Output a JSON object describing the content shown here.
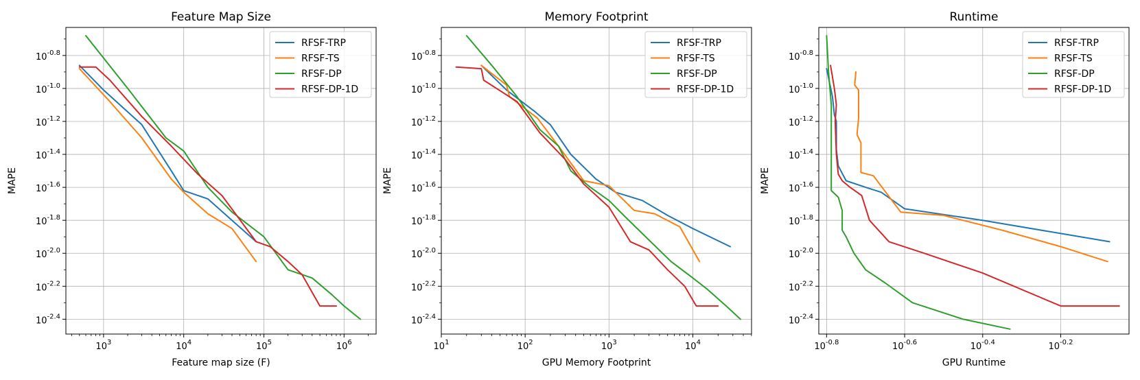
{
  "chart_data": [
    {
      "type": "line",
      "title": "Feature Map Size",
      "xlabel": "Feature map size (F)",
      "ylabel": "MAPE",
      "xscale": "log",
      "yscale": "log",
      "xlim_log10": [
        2.53,
        6.4
      ],
      "ylim_log10": [
        -2.49,
        -0.63
      ],
      "xticks_log10": [
        3,
        4,
        5,
        6
      ],
      "xtick_labels": [
        "10^3",
        "10^4",
        "10^5",
        "10^6"
      ],
      "yticks_log10": [
        -2.4,
        -2.2,
        -2.0,
        -1.8,
        -1.6,
        -1.4,
        -1.2,
        -1.0,
        -0.8
      ],
      "ytick_labels": [
        "10^-2.4",
        "10^-2.2",
        "10^-2.0",
        "10^-1.8",
        "10^-1.6",
        "10^-1.4",
        "10^-1.2",
        "10^-1.0",
        "10^-0.8"
      ],
      "grid": true,
      "legend": "top-right",
      "series": [
        {
          "name": "RFSF-TRP",
          "color": "#1f77b4",
          "x": [
            500,
            1000,
            3000,
            7000,
            10000,
            20000,
            40000,
            80000
          ],
          "y_log10": [
            -0.86,
            -1.01,
            -1.22,
            -1.5,
            -1.62,
            -1.67,
            -1.8,
            -1.93
          ]
        },
        {
          "name": "RFSF-TS",
          "color": "#ff7f0e",
          "x": [
            500,
            1200,
            3000,
            7000,
            10000,
            20000,
            40000,
            80000
          ],
          "y_log10": [
            -0.88,
            -1.08,
            -1.3,
            -1.55,
            -1.63,
            -1.76,
            -1.85,
            -2.05
          ]
        },
        {
          "name": "RFSF-DP",
          "color": "#2ca02c",
          "x": [
            600,
            2000,
            6000,
            10000,
            20000,
            40000,
            100000,
            200000,
            400000,
            700000,
            1000000,
            1600000
          ],
          "y_log10": [
            -0.68,
            -1.0,
            -1.3,
            -1.38,
            -1.6,
            -1.75,
            -1.9,
            -2.1,
            -2.15,
            -2.25,
            -2.32,
            -2.4
          ]
        },
        {
          "name": "RFSF-DP-1D",
          "color": "#d62728",
          "x": [
            500,
            800,
            1200,
            3000,
            7000,
            15000,
            30000,
            80000,
            120000,
            200000,
            300000,
            500000,
            800000
          ],
          "y_log10": [
            -0.87,
            -0.87,
            -0.95,
            -1.17,
            -1.35,
            -1.52,
            -1.65,
            -1.93,
            -1.96,
            -2.05,
            -2.13,
            -2.32,
            -2.32
          ]
        }
      ]
    },
    {
      "type": "line",
      "title": "Memory Footprint",
      "xlabel": "GPU Memory Footprint",
      "ylabel": "MAPE",
      "xscale": "log",
      "yscale": "log",
      "xlim_log10": [
        1.0,
        4.7
      ],
      "ylim_log10": [
        -2.49,
        -0.63
      ],
      "xticks_log10": [
        1,
        2,
        3,
        4
      ],
      "xtick_labels": [
        "10^1",
        "10^2",
        "10^3",
        "10^4"
      ],
      "yticks_log10": [
        -2.4,
        -2.2,
        -2.0,
        -1.8,
        -1.6,
        -1.4,
        -1.2,
        -1.0,
        -0.8
      ],
      "ytick_labels": [
        "10^-2.4",
        "10^-2.2",
        "10^-2.0",
        "10^-1.8",
        "10^-1.6",
        "10^-1.4",
        "10^-1.2",
        "10^-1.0",
        "10^-0.8"
      ],
      "grid": true,
      "legend": "top-right",
      "series": [
        {
          "name": "RFSF-TRP",
          "color": "#1f77b4",
          "x": [
            30,
            60,
            130,
            200,
            350,
            700,
            1200,
            2500,
            5000,
            10000,
            28000
          ],
          "y_log10": [
            -0.86,
            -1.01,
            -1.14,
            -1.22,
            -1.4,
            -1.55,
            -1.63,
            -1.68,
            -1.77,
            -1.85,
            -1.96
          ]
        },
        {
          "name": "RFSF-TS",
          "color": "#ff7f0e",
          "x": [
            30,
            60,
            65,
            140,
            250,
            500,
            1000,
            2000,
            3500,
            7000,
            12000
          ],
          "y_log10": [
            -0.86,
            -0.98,
            -1.05,
            -1.18,
            -1.35,
            -1.56,
            -1.59,
            -1.74,
            -1.76,
            -1.84,
            -2.05
          ]
        },
        {
          "name": "RFSF-DP",
          "color": "#2ca02c",
          "x": [
            20,
            40,
            80,
            150,
            250,
            350,
            600,
            1000,
            1500,
            3000,
            5500,
            10000,
            15000,
            25000,
            37000
          ],
          "y_log10": [
            -0.68,
            -0.86,
            -1.05,
            -1.25,
            -1.35,
            -1.5,
            -1.6,
            -1.68,
            -1.77,
            -1.92,
            -2.05,
            -2.15,
            -2.22,
            -2.32,
            -2.4
          ]
        },
        {
          "name": "RFSF-DP-1D",
          "color": "#d62728",
          "x": [
            15,
            30,
            32,
            80,
            150,
            300,
            500,
            1000,
            1800,
            3000,
            5000,
            8000,
            11000,
            20000
          ],
          "y_log10": [
            -0.87,
            -0.88,
            -0.95,
            -1.08,
            -1.27,
            -1.43,
            -1.58,
            -1.72,
            -1.93,
            -1.98,
            -2.1,
            -2.2,
            -2.32,
            -2.32
          ]
        }
      ]
    },
    {
      "type": "line",
      "title": "Runtime",
      "xlabel": "GPU Runtime",
      "ylabel": "MAPE",
      "xscale": "log",
      "yscale": "log",
      "xlim_log10": [
        -0.82,
        -0.025
      ],
      "ylim_log10": [
        -2.49,
        -0.63
      ],
      "xticks_log10": [
        -0.8,
        -0.6,
        -0.4,
        -0.2
      ],
      "xtick_labels": [
        "10^-0.8",
        "10^-0.6",
        "10^-0.4",
        "10^-0.2"
      ],
      "yticks_log10": [
        -2.4,
        -2.2,
        -2.0,
        -1.8,
        -1.6,
        -1.4,
        -1.2,
        -1.0,
        -0.8
      ],
      "ytick_labels": [
        "10^-2.4",
        "10^-2.2",
        "10^-2.0",
        "10^-1.8",
        "10^-1.6",
        "10^-1.4",
        "10^-1.2",
        "10^-1.0",
        "10^-0.8"
      ],
      "grid": true,
      "legend": "top-right",
      "series": [
        {
          "name": "RFSF-TRP",
          "color": "#1f77b4",
          "x_log10": [
            -0.8,
            -0.785,
            -0.78,
            -0.775,
            -0.775,
            -0.77,
            -0.75,
            -0.7,
            -0.66,
            -0.6,
            -0.4,
            -0.2,
            -0.075
          ],
          "y_log10": [
            -0.88,
            -1.05,
            -1.16,
            -1.2,
            -1.37,
            -1.47,
            -1.56,
            -1.6,
            -1.63,
            -1.73,
            -1.8,
            -1.88,
            -1.93
          ]
        },
        {
          "name": "RFSF-TS",
          "color": "#ff7f0e",
          "x_log10": [
            -0.725,
            -0.728,
            -0.718,
            -0.718,
            -0.722,
            -0.712,
            -0.712,
            -0.68,
            -0.61,
            -0.5,
            -0.35,
            -0.2,
            -0.08
          ],
          "y_log10": [
            -0.9,
            -0.98,
            -1.01,
            -1.18,
            -1.28,
            -1.33,
            -1.51,
            -1.53,
            -1.75,
            -1.77,
            -1.86,
            -1.96,
            -2.05
          ]
        },
        {
          "name": "RFSF-DP",
          "color": "#2ca02c",
          "x_log10": [
            -0.8,
            -0.795,
            -0.788,
            -0.788,
            -0.77,
            -0.76,
            -0.76,
            -0.75,
            -0.73,
            -0.7,
            -0.65,
            -0.58,
            -0.45,
            -0.33
          ],
          "y_log10": [
            -0.68,
            -0.9,
            -1.1,
            -1.62,
            -1.66,
            -1.74,
            -1.86,
            -1.9,
            -2.0,
            -2.1,
            -2.18,
            -2.3,
            -2.4,
            -2.46
          ]
        },
        {
          "name": "RFSF-DP-1D",
          "color": "#d62728",
          "x_log10": [
            -0.79,
            -0.78,
            -0.775,
            -0.778,
            -0.775,
            -0.77,
            -0.76,
            -0.74,
            -0.71,
            -0.69,
            -0.64,
            -0.55,
            -0.4,
            -0.2,
            -0.05
          ],
          "y_log10": [
            -0.86,
            -1.0,
            -1.1,
            -1.2,
            -1.4,
            -1.52,
            -1.56,
            -1.6,
            -1.65,
            -1.8,
            -1.93,
            -2.0,
            -2.12,
            -2.32,
            -2.32
          ]
        }
      ]
    }
  ]
}
